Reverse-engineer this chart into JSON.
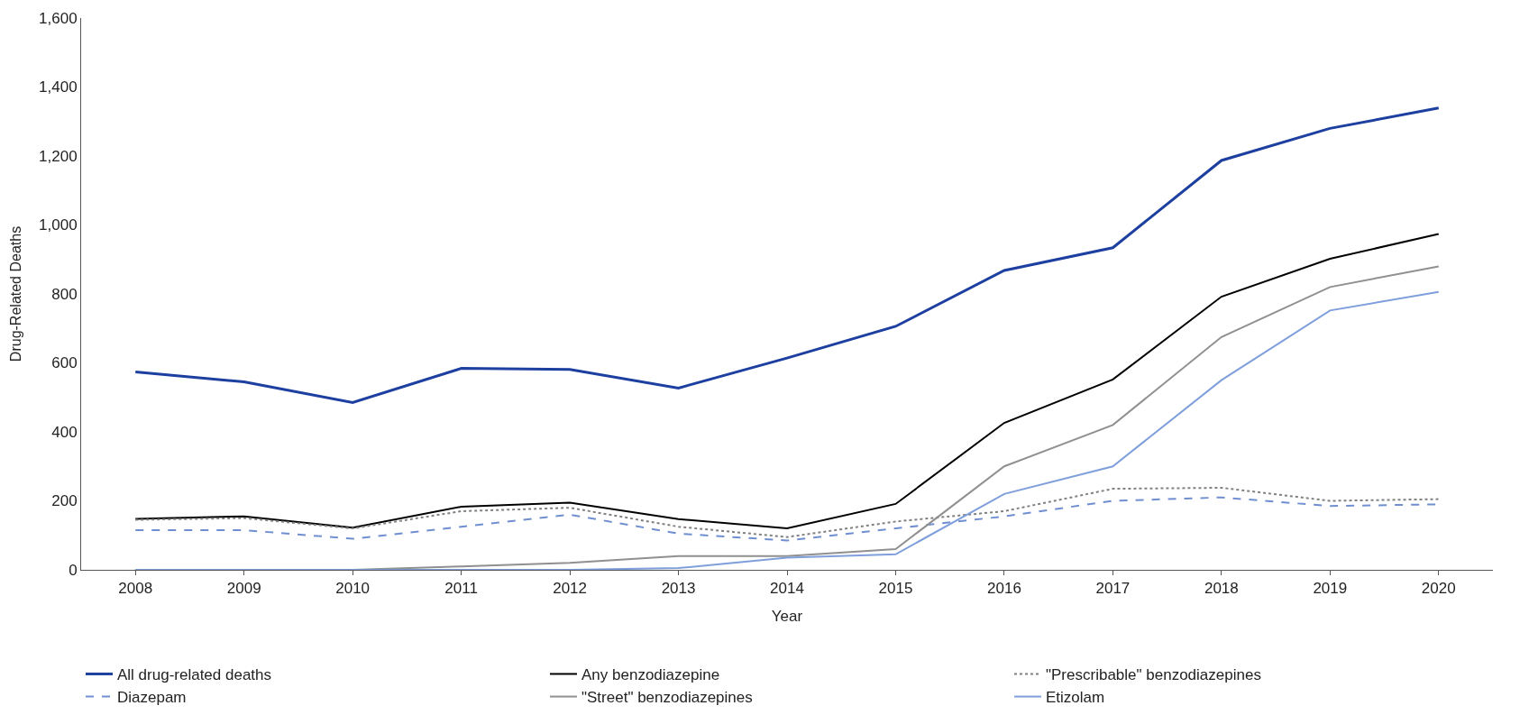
{
  "chart_data": {
    "type": "line",
    "xlabel": "Year",
    "ylabel": "Drug-Related Deaths",
    "categories": [
      "2008",
      "2009",
      "2010",
      "2011",
      "2012",
      "2013",
      "2014",
      "2015",
      "2016",
      "2017",
      "2018",
      "2019",
      "2020"
    ],
    "ylim": [
      0,
      1600
    ],
    "yticks": [
      0,
      200,
      400,
      600,
      800,
      {
        "value": 1000,
        "label": "1,000"
      },
      {
        "value": 1200,
        "label": "1,200"
      },
      {
        "value": 1400,
        "label": "1,400"
      },
      {
        "value": 1600,
        "label": "1,600"
      }
    ],
    "legend": "bottom",
    "marker": "none",
    "series": [
      {
        "name": "All drug-related deaths",
        "color": "#1c3fa0",
        "line_style": "solid",
        "values": [
          574,
          545,
          485,
          584,
          581,
          527,
          614,
          706,
          868,
          934,
          1187,
          1280,
          1339
        ]
      },
      {
        "name": "Any benzodiazepine",
        "color": "#000000",
        "line_style": "solid",
        "values": [
          148,
          155,
          122,
          183,
          195,
          147,
          120,
          191,
          426,
          552,
          792,
          902,
          974
        ]
      },
      {
        "name": "\"Prescribable\" benzodiazepines",
        "color": "#808080",
        "line_style": "dotted",
        "values": [
          145,
          150,
          120,
          170,
          180,
          125,
          95,
          140,
          170,
          235,
          238,
          200,
          205
        ]
      },
      {
        "name": "Diazepam",
        "color": "#6f8fd0",
        "line_style": "dashed",
        "values": [
          115,
          115,
          90,
          125,
          160,
          105,
          85,
          120,
          155,
          200,
          210,
          185,
          190
        ]
      },
      {
        "name": "\"Street\" benzodiazepines",
        "color": "#909090",
        "line_style": "solid",
        "values": [
          0,
          0,
          0,
          10,
          20,
          40,
          40,
          60,
          300,
          420,
          675,
          820,
          880
        ]
      },
      {
        "name": "Etizolam",
        "color": "#7f9fdc",
        "line_style": "solid",
        "values": [
          0,
          0,
          0,
          0,
          0,
          5,
          35,
          45,
          220,
          300,
          550,
          752,
          806
        ]
      }
    ]
  }
}
